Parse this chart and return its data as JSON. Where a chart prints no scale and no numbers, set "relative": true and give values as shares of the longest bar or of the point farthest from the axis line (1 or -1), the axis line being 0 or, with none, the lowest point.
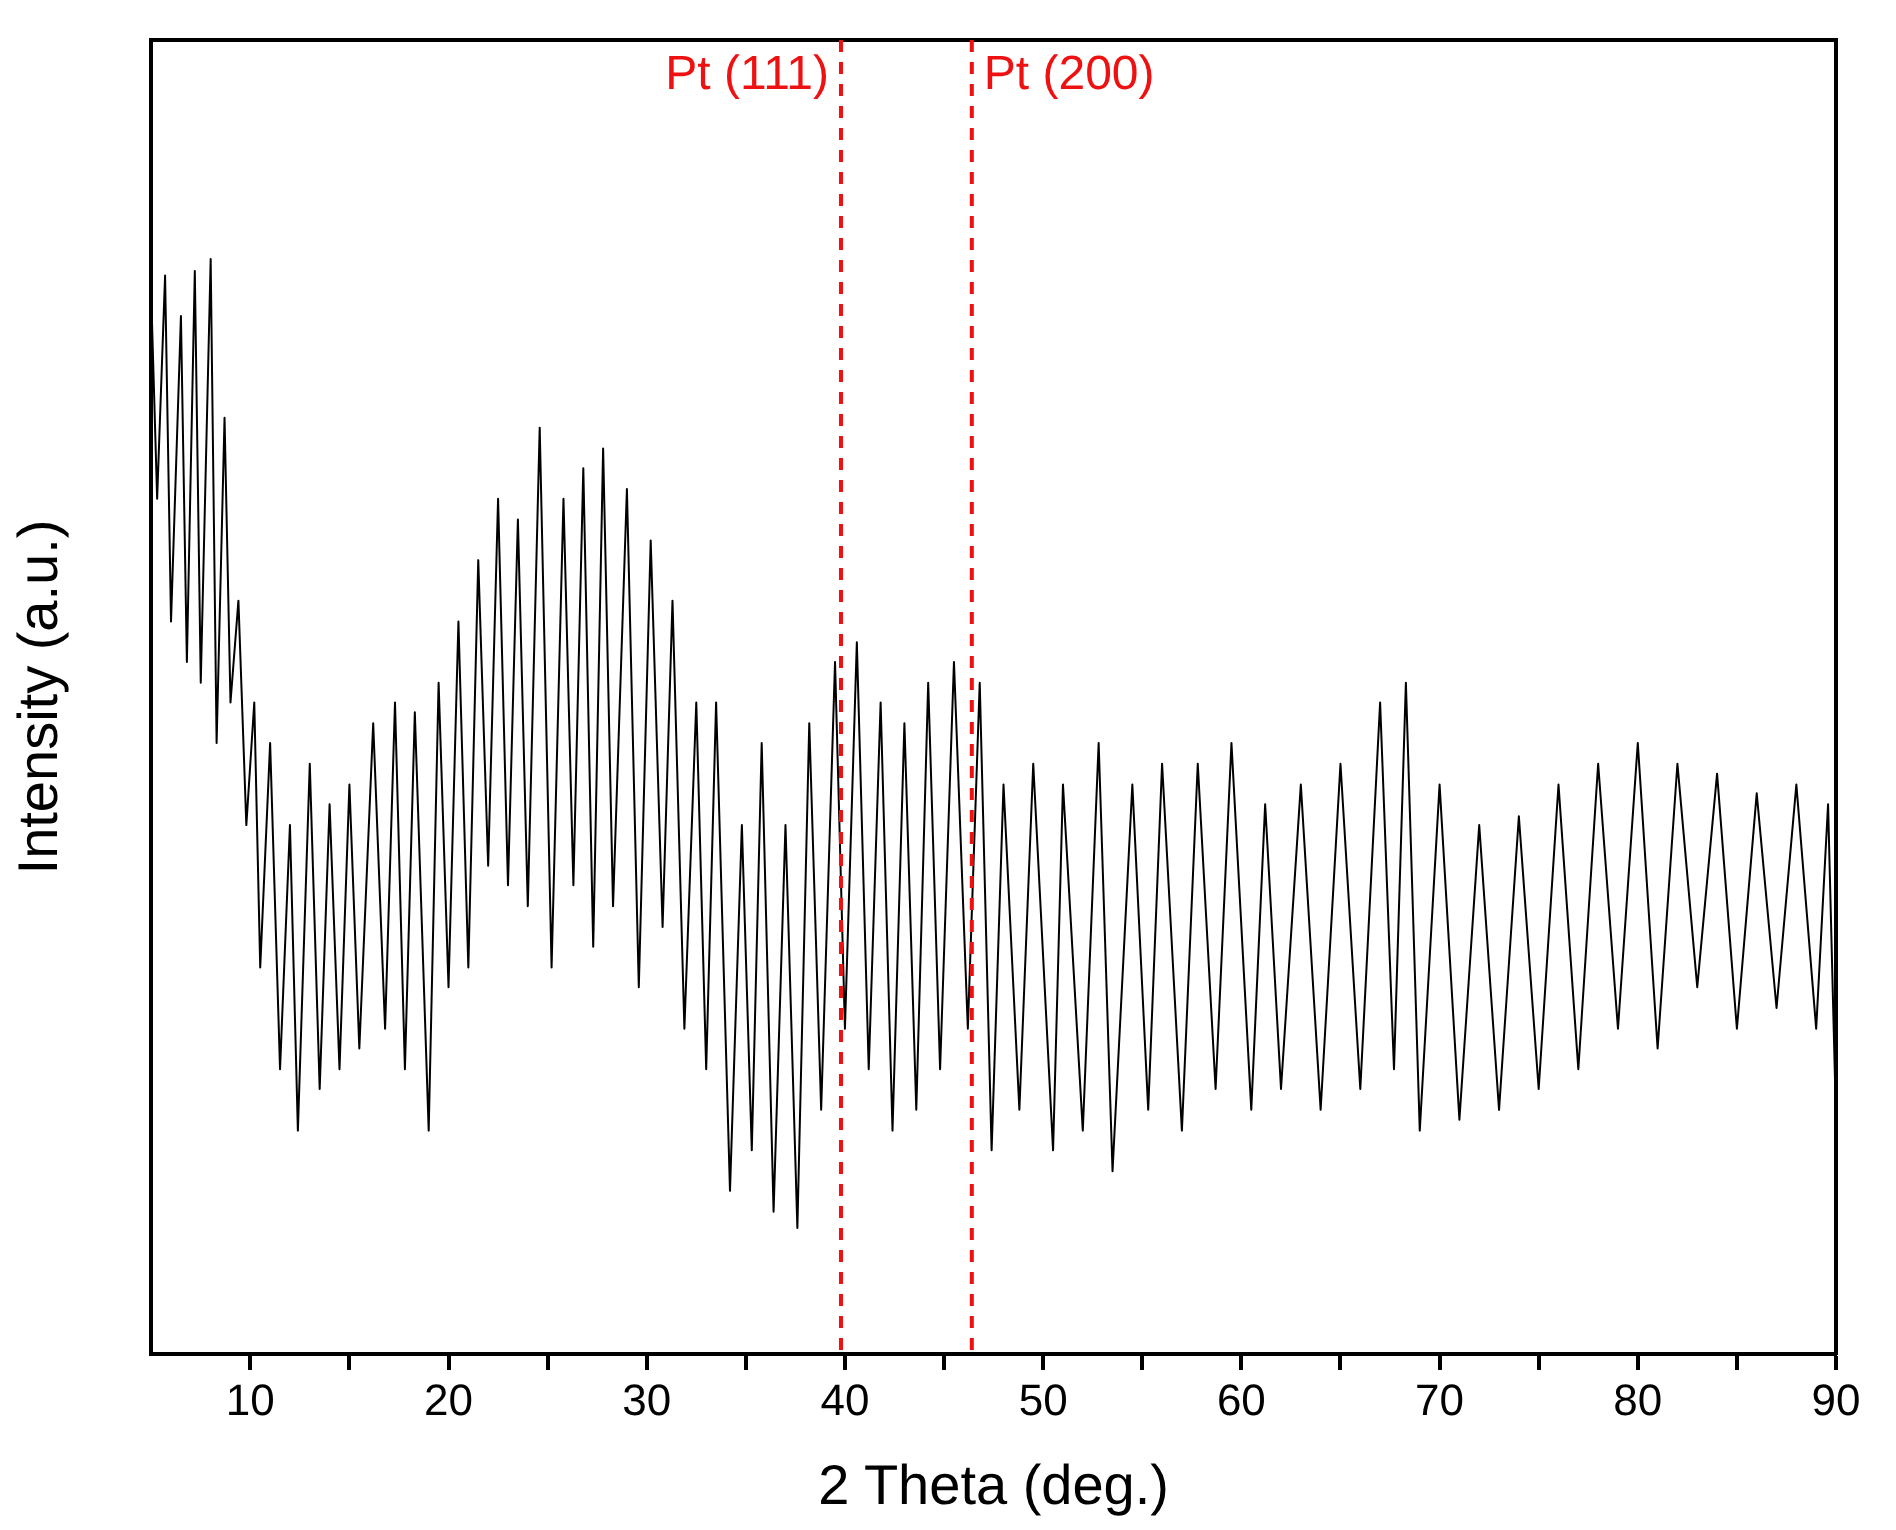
{
  "chart_data": {
    "type": "line",
    "relative": true,
    "xlabel": "2 Theta (deg.)",
    "ylabel": "Intensity (a.u.)",
    "xlim": [
      5,
      90
    ],
    "xticks": [
      10,
      {
        "value": 15,
        "label": null
      },
      20,
      {
        "value": 25,
        "label": null
      },
      30,
      {
        "value": 35,
        "label": null
      },
      40,
      {
        "value": 45,
        "label": null
      },
      50,
      {
        "value": 55,
        "label": null
      },
      60,
      {
        "value": 65,
        "label": null
      },
      70,
      {
        "value": 75,
        "label": null
      },
      80,
      {
        "value": 85,
        "label": null
      },
      90
    ],
    "tick_labels": "x",
    "grid": false,
    "legend": false,
    "marker": "none",
    "line_style": "solid",
    "ref_lines": [
      {
        "axis": "x",
        "value": 39.8,
        "label": "Pt (111)",
        "color": "#ee1111",
        "line_style": "dashed"
      },
      {
        "axis": "x",
        "value": 46.4,
        "label": "Pt (200)",
        "color": "#ee1111",
        "line_style": "dashed"
      }
    ],
    "series": [
      {
        "color": "#000000",
        "x": [
          5.0,
          5.3,
          5.7,
          6.0,
          6.5,
          6.8,
          7.2,
          7.5,
          8.0,
          8.3,
          8.7,
          9.0,
          9.4,
          9.8,
          10.2,
          10.5,
          11.0,
          11.5,
          12.0,
          12.4,
          13.0,
          13.5,
          14.0,
          14.5,
          15.0,
          15.5,
          16.2,
          16.8,
          17.3,
          17.8,
          18.3,
          19.0,
          19.5,
          20.0,
          20.5,
          21.0,
          21.5,
          22.0,
          22.5,
          23.0,
          23.5,
          24.0,
          24.6,
          25.2,
          25.8,
          26.3,
          26.8,
          27.3,
          27.8,
          28.3,
          29.0,
          29.6,
          30.2,
          30.8,
          31.3,
          31.9,
          32.5,
          33.0,
          33.5,
          34.2,
          34.8,
          35.3,
          35.8,
          36.4,
          37.0,
          37.6,
          38.2,
          38.8,
          39.5,
          40.0,
          40.6,
          41.2,
          41.8,
          42.4,
          43.0,
          43.6,
          44.2,
          44.8,
          45.5,
          46.2,
          46.8,
          47.4,
          48.0,
          48.8,
          49.5,
          50.5,
          51.0,
          52.0,
          52.8,
          53.5,
          54.5,
          55.3,
          56.0,
          57.0,
          57.8,
          58.7,
          59.5,
          60.5,
          61.2,
          62.0,
          63.0,
          64.0,
          65.0,
          66.0,
          67.0,
          67.7,
          68.3,
          69.0,
          70.0,
          71.0,
          72.0,
          73.0,
          74.0,
          75.0,
          76.0,
          77.0,
          78.0,
          79.0,
          80.0,
          81.0,
          82.0,
          83.0,
          84.0,
          85.0,
          86.0,
          87.0,
          88.0,
          89.0,
          89.6,
          90.0
        ],
        "values": [
          0.967,
          0.781,
          0.985,
          0.669,
          0.948,
          0.632,
          0.989,
          0.613,
          1.0,
          0.558,
          0.855,
          0.595,
          0.688,
          0.483,
          0.595,
          0.353,
          0.558,
          0.26,
          0.483,
          0.204,
          0.539,
          0.242,
          0.502,
          0.26,
          0.52,
          0.279,
          0.576,
          0.297,
          0.595,
          0.26,
          0.586,
          0.204,
          0.613,
          0.335,
          0.669,
          0.353,
          0.725,
          0.446,
          0.781,
          0.428,
          0.762,
          0.409,
          0.846,
          0.353,
          0.781,
          0.428,
          0.809,
          0.372,
          0.827,
          0.409,
          0.79,
          0.335,
          0.743,
          0.39,
          0.688,
          0.297,
          0.595,
          0.26,
          0.595,
          0.149,
          0.483,
          0.186,
          0.558,
          0.13,
          0.483,
          0.115,
          0.576,
          0.223,
          0.632,
          0.297,
          0.65,
          0.26,
          0.595,
          0.204,
          0.576,
          0.223,
          0.613,
          0.26,
          0.632,
          0.297,
          0.613,
          0.186,
          0.52,
          0.223,
          0.539,
          0.186,
          0.52,
          0.204,
          0.558,
          0.167,
          0.52,
          0.223,
          0.539,
          0.204,
          0.539,
          0.242,
          0.558,
          0.223,
          0.502,
          0.242,
          0.52,
          0.223,
          0.539,
          0.242,
          0.595,
          0.26,
          0.613,
          0.204,
          0.52,
          0.214,
          0.483,
          0.223,
          0.491,
          0.242,
          0.52,
          0.26,
          0.539,
          0.297,
          0.558,
          0.279,
          0.539,
          0.335,
          0.53,
          0.297,
          0.512,
          0.316,
          0.52,
          0.297,
          0.502,
          0.214
        ]
      }
    ]
  }
}
